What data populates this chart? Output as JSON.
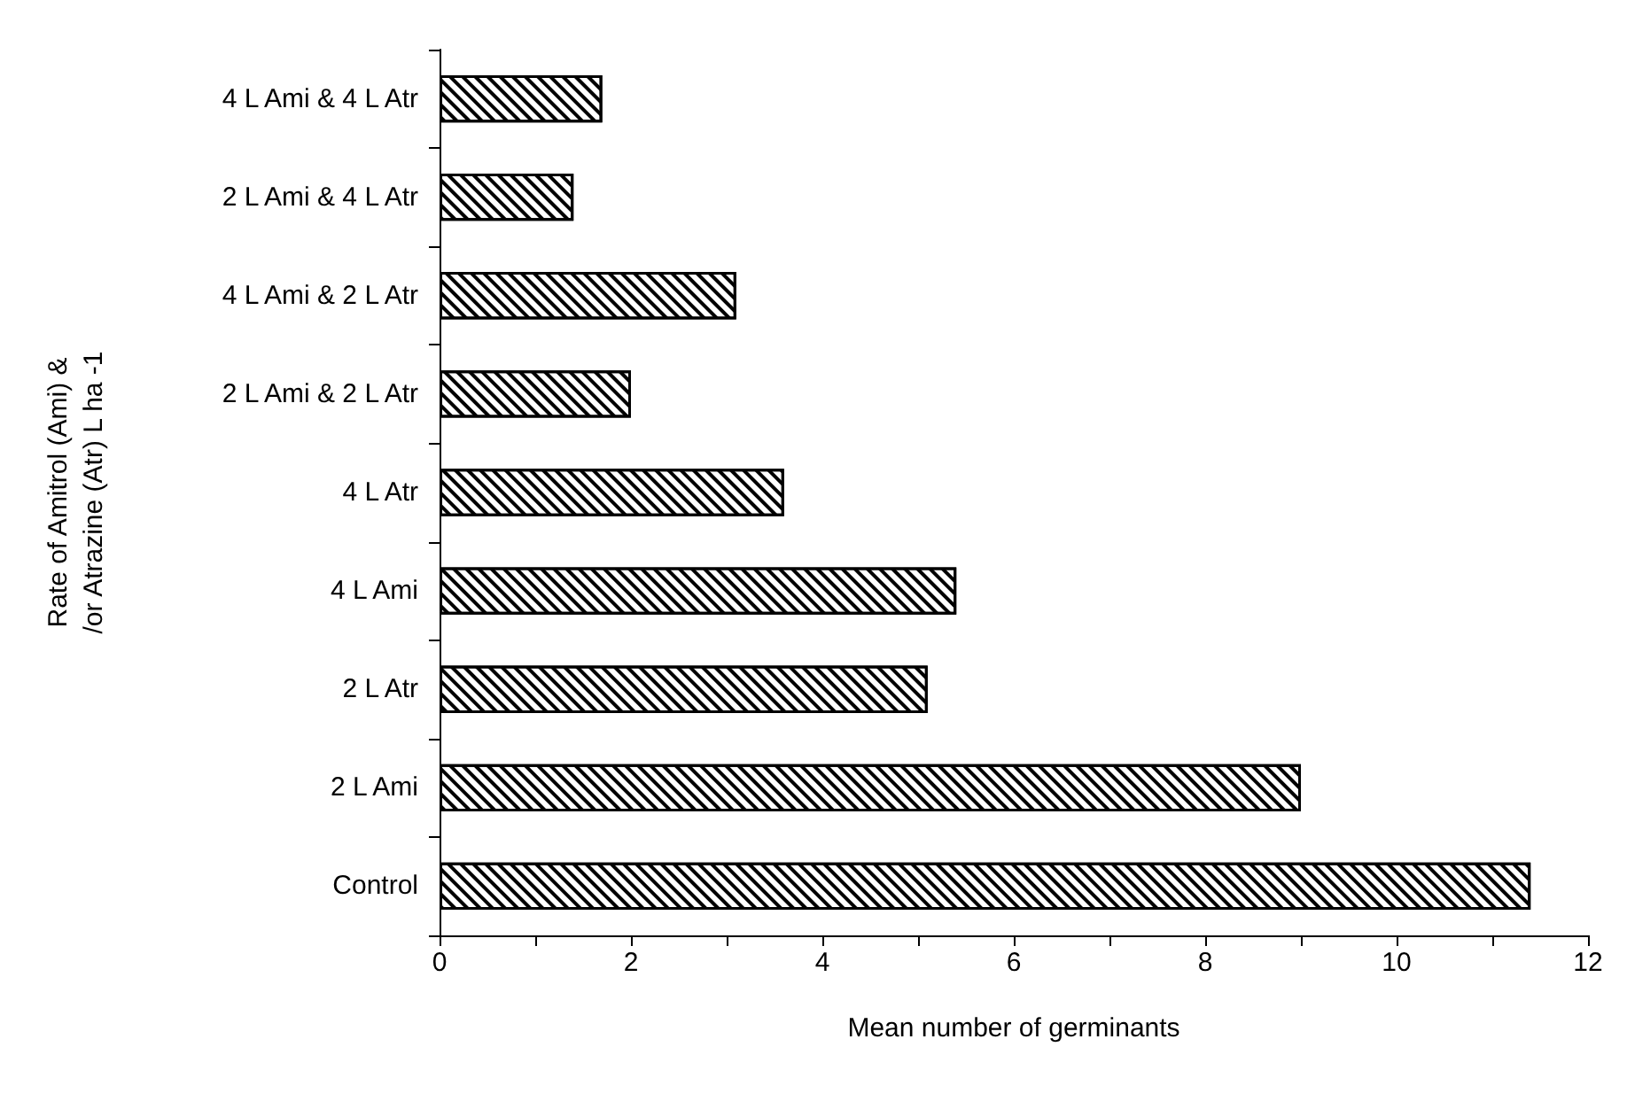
{
  "chart_data": {
    "type": "bar",
    "orientation": "horizontal",
    "xlabel": "Mean number of germinants",
    "ylabel": "Rate of Amitrol (Ami) &\n/or Atrazine (Atr) L ha -1",
    "categories": [
      "4 L Ami & 4 L Atr",
      "2 L Ami & 4 L Atr",
      "4 L Ami & 2 L Atr",
      "2 L Ami & 2 L Atr",
      "4 L Atr",
      "4 L Ami",
      "2 L Atr",
      "2 L Ami",
      "Control"
    ],
    "values": [
      1.7,
      1.4,
      3.1,
      2.0,
      3.6,
      5.4,
      5.1,
      9.0,
      11.4
    ],
    "color": "#ffffff",
    "xlim": [
      0,
      12
    ],
    "xticks": [
      0,
      {
        "value": 1,
        "label": null
      },
      2,
      {
        "value": 3,
        "label": null
      },
      4,
      {
        "value": 5,
        "label": null
      },
      6,
      {
        "value": 7,
        "label": null
      },
      8,
      {
        "value": 9,
        "label": null
      },
      10,
      {
        "value": 11,
        "label": null
      },
      12
    ],
    "grid": false
  }
}
